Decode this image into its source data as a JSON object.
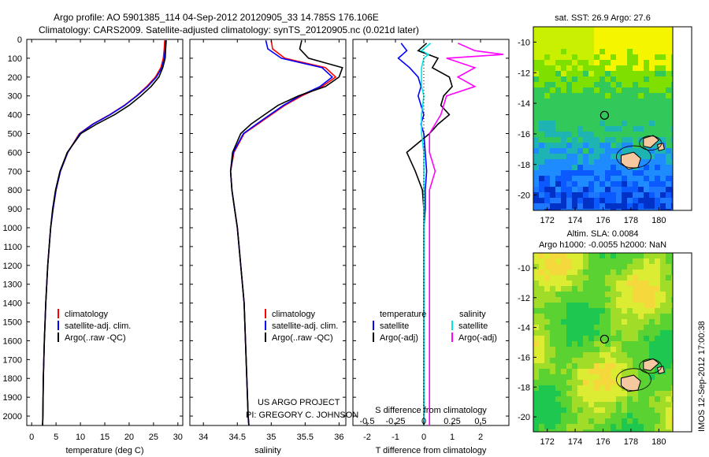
{
  "header": {
    "line1": "Argo profile: AO 5901385_114 04-Sep-2012 20120905_33 14.785S 176.106E",
    "line2": "Climatology: CARS2009. Satellite-adjusted climatology: synTS_20120905.nc (0.021d later)"
  },
  "depth_ticks": [
    0,
    100,
    200,
    300,
    400,
    500,
    600,
    700,
    800,
    900,
    1000,
    1100,
    1200,
    1300,
    1400,
    1500,
    1600,
    1700,
    1800,
    1900,
    2000
  ],
  "colors": {
    "climatology": "#ff0000",
    "satellite": "#0000ff",
    "argo": "#000000",
    "sal_satellite": "#00e5e5",
    "sal_argo": "#ff00ff"
  },
  "chart_data": [
    {
      "type": "line",
      "panel": "temperature",
      "xlabel": "temperature (deg C)",
      "xlim": [
        -1,
        31
      ],
      "ylim": [
        2050,
        0
      ],
      "xticks": [
        0,
        5,
        10,
        15,
        20,
        25,
        30
      ],
      "legend": [
        "climatology",
        "satellite-adj. clim.",
        "Argo(..raw -QC)"
      ],
      "series": [
        {
          "name": "climatology",
          "depth": [
            5,
            50,
            100,
            150,
            200,
            250,
            300,
            350,
            400,
            450,
            500,
            600,
            700,
            800,
            900,
            1000,
            1200,
            1400,
            1600,
            1800,
            2000,
            2050
          ],
          "values": [
            27.3,
            27.2,
            27.0,
            26.5,
            25.4,
            23.6,
            21.5,
            19.0,
            16.0,
            12.5,
            9.8,
            7.4,
            5.9,
            5.0,
            4.4,
            3.9,
            3.3,
            2.9,
            2.6,
            2.4,
            2.3,
            2.25
          ]
        },
        {
          "name": "satellite-adj. clim.",
          "depth": [
            5,
            50,
            100,
            150,
            200,
            250,
            300,
            350,
            400,
            450,
            500,
            600,
            700,
            800,
            900,
            1000,
            1200,
            1400,
            1600,
            1800,
            2000,
            2050
          ],
          "values": [
            27.5,
            27.4,
            27.2,
            26.7,
            25.6,
            23.8,
            21.6,
            19.1,
            16.1,
            12.6,
            9.9,
            7.4,
            5.9,
            5.0,
            4.4,
            3.9,
            3.3,
            2.9,
            2.6,
            2.4,
            2.3,
            2.25
          ]
        },
        {
          "name": "Argo(..raw -QC)",
          "depth": [
            5,
            50,
            100,
            150,
            200,
            250,
            300,
            350,
            400,
            450,
            500,
            600,
            700,
            800,
            900,
            1000,
            1200,
            1400,
            1600,
            1800,
            2000,
            2050
          ],
          "values": [
            27.6,
            27.5,
            27.4,
            26.9,
            26.1,
            24.5,
            22.4,
            20.0,
            17.0,
            13.3,
            10.1,
            7.3,
            5.8,
            4.9,
            4.3,
            3.9,
            3.3,
            2.9,
            2.6,
            2.4,
            2.3,
            2.25
          ]
        }
      ]
    },
    {
      "type": "line",
      "panel": "salinity",
      "xlabel": "salinity",
      "xlim": [
        33.8,
        36.1
      ],
      "ylim": [
        2050,
        0
      ],
      "xticks": [
        34,
        34.5,
        35,
        35.5,
        36
      ],
      "legend": [
        "climatology",
        "satellite-adj. clim.",
        "Argo(..raw -QC)"
      ],
      "series": [
        {
          "name": "climatology",
          "depth": [
            5,
            50,
            100,
            150,
            200,
            250,
            300,
            350,
            400,
            450,
            500,
            600,
            700,
            800,
            900,
            1000,
            1200,
            1400,
            1600,
            1800,
            2000,
            2050
          ],
          "values": [
            35.0,
            35.02,
            35.2,
            35.8,
            35.95,
            35.75,
            35.45,
            35.2,
            35.0,
            34.8,
            34.6,
            34.45,
            34.4,
            34.42,
            34.46,
            34.5,
            34.55,
            34.6,
            34.62,
            34.64,
            34.66,
            34.67
          ]
        },
        {
          "name": "satellite-adj. clim.",
          "depth": [
            5,
            50,
            100,
            150,
            200,
            250,
            300,
            350,
            400,
            450,
            500,
            600,
            700,
            800,
            900,
            1000,
            1200,
            1400,
            1600,
            1800,
            2000,
            2050
          ],
          "values": [
            34.92,
            34.95,
            35.15,
            35.75,
            35.9,
            35.72,
            35.42,
            35.18,
            34.98,
            34.78,
            34.59,
            34.44,
            34.4,
            34.42,
            34.46,
            34.5,
            34.55,
            34.6,
            34.62,
            34.64,
            34.66,
            34.67
          ]
        },
        {
          "name": "Argo(..raw -QC)",
          "depth": [
            5,
            50,
            100,
            150,
            200,
            250,
            300,
            350,
            400,
            450,
            500,
            600,
            700,
            800,
            900,
            1000,
            1200,
            1400,
            1600,
            1800,
            2000,
            2050
          ],
          "values": [
            35.45,
            35.42,
            35.55,
            36.05,
            36.0,
            35.8,
            35.4,
            35.1,
            34.9,
            34.7,
            34.55,
            34.43,
            34.4,
            34.42,
            34.46,
            34.5,
            34.55,
            34.6,
            34.62,
            34.64,
            34.66,
            34.67
          ]
        }
      ]
    },
    {
      "type": "line",
      "panel": "difference",
      "xlabel": "T difference from climatology",
      "xlabel2": "S difference from climatology",
      "xlim": [
        -2.5,
        3
      ],
      "xticks": [
        -2,
        -1,
        0,
        1,
        2
      ],
      "xticks2": [
        -0.5,
        -0.25,
        0,
        0.25,
        0.5
      ],
      "ylim": [
        2050,
        0
      ],
      "legend_headers": [
        "temperature",
        "salinity"
      ],
      "legend_left": [
        "satellite",
        "Argo(-adj)"
      ],
      "legend_right": [
        "satellite",
        "Argo(-adj)"
      ],
      "series": [
        {
          "name": "temperature satellite",
          "depth": [
            20,
            60,
            100,
            150,
            200,
            250,
            300,
            350,
            400,
            450,
            500,
            600,
            700,
            800,
            900,
            1000,
            1100,
            1200,
            1300,
            1400,
            1600,
            1800,
            2000,
            2050
          ],
          "values": [
            -0.8,
            -0.6,
            -0.9,
            -0.5,
            -0.2,
            -0.1,
            -0.2,
            -0.1,
            0,
            -0.1,
            0,
            0.05,
            0.1,
            0.05,
            0.05,
            0,
            0,
            0,
            0,
            0,
            0,
            0,
            0,
            0
          ]
        },
        {
          "name": "temperature Argo(-adj)",
          "depth": [
            20,
            60,
            100,
            150,
            200,
            250,
            300,
            350,
            400,
            450,
            500,
            600,
            700,
            800,
            900,
            1000,
            1100,
            1200,
            1300,
            1400,
            1600,
            1800,
            2000,
            2050
          ],
          "values": [
            0.1,
            -0.2,
            0.5,
            0.3,
            0.9,
            1.0,
            0.7,
            0.6,
            0.9,
            0.5,
            0.2,
            -0.6,
            -0.3,
            -0.05,
            0,
            0,
            0,
            0,
            0,
            0,
            0,
            0,
            0,
            0
          ]
        },
        {
          "name": "salinity satellite",
          "depth": [
            20,
            60,
            80,
            100,
            150,
            200,
            250,
            300,
            400,
            500,
            600,
            700,
            800,
            900,
            1000,
            1200,
            1400,
            1600,
            1800,
            2000,
            2050
          ],
          "values": [
            0.06,
            -0.02,
            0.04,
            0.0,
            -0.02,
            -0.02,
            -0.02,
            0.0,
            -0.02,
            -0.02,
            0,
            0,
            0,
            0,
            0,
            0,
            0,
            0,
            0,
            0,
            0
          ]
        },
        {
          "name": "salinity Argo(-adj)",
          "depth": [
            20,
            60,
            80,
            100,
            150,
            200,
            250,
            300,
            400,
            500,
            600,
            700,
            800,
            900,
            1000,
            1200,
            1400,
            1600,
            1800,
            2000,
            2050
          ],
          "values": [
            0.3,
            0.45,
            0.7,
            0.2,
            0.45,
            0.3,
            0.45,
            0.2,
            0.15,
            0.05,
            0.05,
            0.1,
            0.05,
            0.05,
            0.05,
            0.05,
            0.05,
            0.05,
            0.05,
            0.05,
            0.05
          ]
        }
      ]
    },
    {
      "type": "heatmap",
      "panel": "sst_map",
      "title": "sat. SST: 26.9 Argo: 27.6",
      "xticks": [
        172,
        174,
        176,
        178,
        180
      ],
      "yticks": [
        -10,
        -12,
        -14,
        -16,
        -18,
        -20
      ],
      "xlim": [
        171,
        181
      ],
      "ylim": [
        -21,
        -9
      ],
      "argo_position": {
        "lon": 176.106,
        "lat": -14.785
      }
    },
    {
      "type": "heatmap",
      "panel": "sla_map",
      "title": "Altim. SLA: 0.0084",
      "subtitle": "Argo h1000: -0.0055 h2000: NaN",
      "xticks": [
        172,
        174,
        176,
        178,
        180
      ],
      "yticks": [
        -10,
        -12,
        -14,
        -16,
        -18,
        -20
      ],
      "xlim": [
        171,
        181
      ],
      "ylim": [
        -21,
        -9
      ],
      "argo_position": {
        "lon": 176.106,
        "lat": -14.785
      }
    }
  ],
  "footer_project": "US ARGO PROJECT",
  "footer_pi": "PI: GREGORY C. JOHNSON",
  "side_stamp": "IMOS 12-Sep-2012 17:00:38"
}
